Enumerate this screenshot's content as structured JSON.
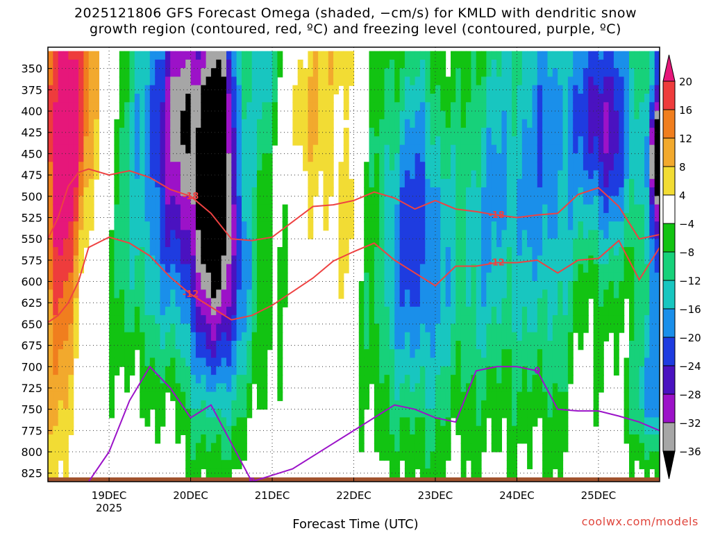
{
  "chart_data": {
    "type": "heatmap",
    "title_line1": "2025121806 GFS Forecast Omega (shaded, −cm/s) for KMLD with dendritic snow",
    "title_line2": "growth region (contoured, red, ºC) and freezing level (contoured, purple, ºC)",
    "xlabel": "Forecast Time (UTC)",
    "ylabel": "",
    "x_ticks": [
      "19DEC",
      "20DEC",
      "21DEC",
      "22DEC",
      "23DEC",
      "24DEC",
      "25DEC"
    ],
    "x_year_label": "2025",
    "x_range": [
      "2025-12-18T06",
      "2025-12-25T18"
    ],
    "y_ticks": [
      350,
      375,
      400,
      425,
      450,
      475,
      500,
      525,
      550,
      575,
      600,
      625,
      650,
      675,
      700,
      725,
      750,
      775,
      800,
      825
    ],
    "y_range": [
      325,
      835
    ],
    "grid": true,
    "colorbar": {
      "labels": [
        "20",
        "16",
        "12",
        "8",
        "4",
        "−4",
        "−8",
        "−12",
        "−16",
        "−20",
        "−24",
        "−28",
        "−32",
        "−36"
      ],
      "colors": [
        "#e6177a",
        "#ee3c3c",
        "#f07e1e",
        "#f2a92d",
        "#f2dc34",
        "#ffffff",
        "#12c312",
        "#17d17a",
        "#18c6c0",
        "#1a8fea",
        "#1e3ce0",
        "#4a12c0",
        "#9c12c8",
        "#a6a6a6",
        "#000000"
      ]
    },
    "contours": {
      "dgz_m12": {
        "color": "#ee4242",
        "label": "-12",
        "x": [
          "2025-12-18T06",
          "2025-12-18T09",
          "2025-12-18T12",
          "2025-12-18T15",
          "2025-12-18T18",
          "2025-12-19T00",
          "2025-12-19T06",
          "2025-12-19T12",
          "2025-12-19T18",
          "2025-12-20T00",
          "2025-12-20T06",
          "2025-12-20T12",
          "2025-12-20T18",
          "2025-12-21T00",
          "2025-12-21T06",
          "2025-12-21T12",
          "2025-12-21T18",
          "2025-12-22T00",
          "2025-12-22T06",
          "2025-12-22T12",
          "2025-12-22T18",
          "2025-12-23T00",
          "2025-12-23T06",
          "2025-12-23T12",
          "2025-12-23T18",
          "2025-12-24T00",
          "2025-12-24T06",
          "2025-12-24T12",
          "2025-12-24T18",
          "2025-12-25T00",
          "2025-12-25T06",
          "2025-12-25T12",
          "2025-12-25T18"
        ],
        "y": [
          648,
          640,
          625,
          600,
          560,
          548,
          555,
          570,
          595,
          615,
          630,
          645,
          640,
          628,
          612,
          596,
          576,
          565,
          555,
          575,
          590,
          605,
          582,
          582,
          578,
          578,
          575,
          590,
          575,
          573,
          552,
          598,
          560
        ]
      },
      "dgz_m18": {
        "color": "#ee4242",
        "label": "-18",
        "x": [
          "2025-12-18T06",
          "2025-12-18T09",
          "2025-12-18T12",
          "2025-12-18T15",
          "2025-12-18T18",
          "2025-12-19T00",
          "2025-12-19T06",
          "2025-12-19T12",
          "2025-12-19T18",
          "2025-12-20T00",
          "2025-12-20T06",
          "2025-12-20T12",
          "2025-12-20T18",
          "2025-12-21T00",
          "2025-12-21T06",
          "2025-12-21T12",
          "2025-12-21T18",
          "2025-12-22T00",
          "2025-12-22T06",
          "2025-12-22T12",
          "2025-12-22T18",
          "2025-12-23T00",
          "2025-12-23T06",
          "2025-12-23T12",
          "2025-12-23T18",
          "2025-12-24T00",
          "2025-12-24T06",
          "2025-12-24T12",
          "2025-12-24T18",
          "2025-12-25T00",
          "2025-12-25T06",
          "2025-12-25T12",
          "2025-12-25T18"
        ],
        "y": [
          550,
          525,
          488,
          472,
          468,
          475,
          470,
          478,
          492,
          500,
          520,
          550,
          552,
          548,
          530,
          512,
          510,
          505,
          495,
          502,
          515,
          505,
          515,
          518,
          522,
          525,
          522,
          520,
          498,
          490,
          512,
          550,
          545
        ]
      },
      "freezing_0c": {
        "color": "#9b12c8",
        "label": "0",
        "x": [
          "2025-12-18T18",
          "2025-12-19T00",
          "2025-12-19T06",
          "2025-12-19T12",
          "2025-12-19T18",
          "2025-12-20T00",
          "2025-12-20T06",
          "2025-12-20T12",
          "2025-12-20T18",
          "2025-12-21T06",
          "2025-12-21T18",
          "2025-12-22T00",
          "2025-12-22T06",
          "2025-12-22T12",
          "2025-12-22T18",
          "2025-12-23T00",
          "2025-12-23T06",
          "2025-12-23T12",
          "2025-12-23T18",
          "2025-12-24T00",
          "2025-12-24T06",
          "2025-12-24T12",
          "2025-12-24T18",
          "2025-12-25T00",
          "2025-12-25T06",
          "2025-12-25T12",
          "2025-12-25T18"
        ],
        "y": [
          835,
          800,
          740,
          700,
          725,
          760,
          745,
          790,
          835,
          820,
          790,
          775,
          760,
          745,
          750,
          760,
          765,
          705,
          700,
          700,
          705,
          750,
          752,
          752,
          758,
          765,
          775
        ]
      }
    }
  },
  "footer": {
    "xlabel": "Forecast Time (UTC)",
    "credit": "coolwx.com/models"
  }
}
